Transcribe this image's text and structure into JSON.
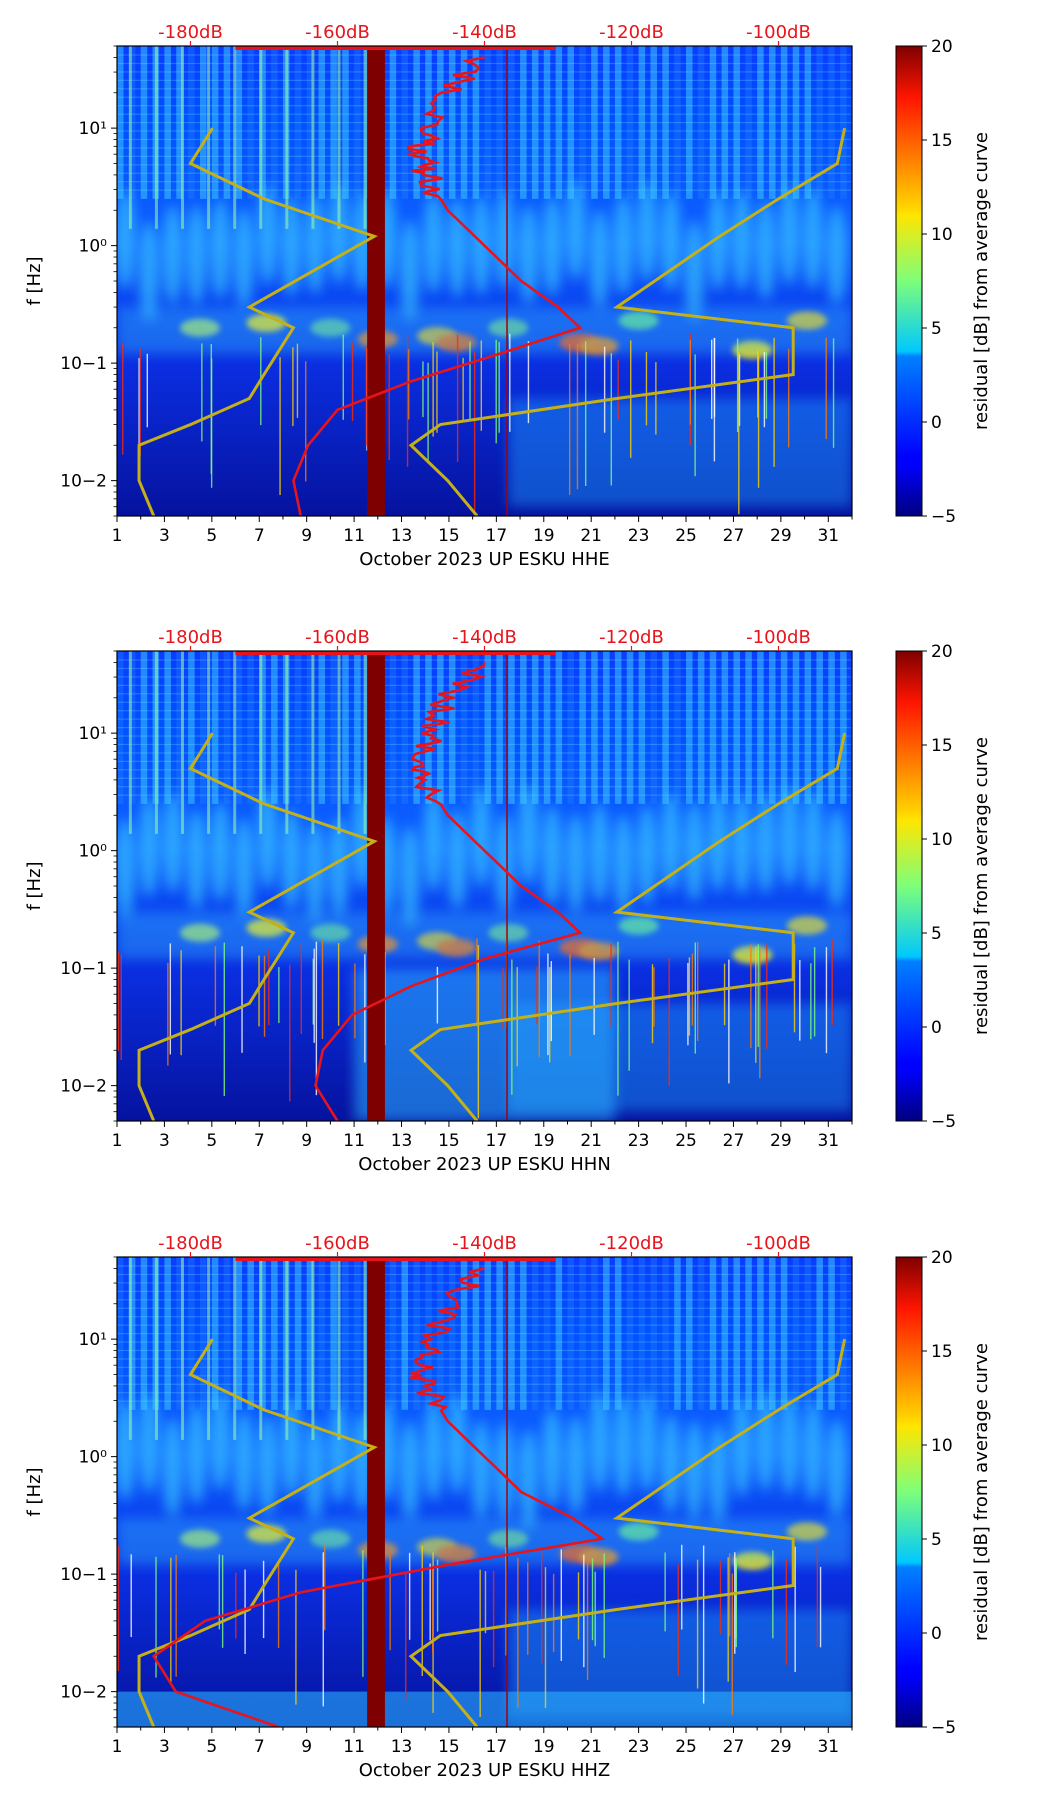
{
  "chart_data": [
    {
      "type": "heatmap",
      "title": "",
      "xlabel": "October 2023 UP ESKU  HHE",
      "ylabel": "f [Hz]",
      "x_ticks": [
        "1",
        "3",
        "5",
        "7",
        "9",
        "11",
        "13",
        "15",
        "17",
        "19",
        "21",
        "23",
        "25",
        "27",
        "29",
        "31"
      ],
      "xlim": [
        1,
        32
      ],
      "ylim": [
        0.005,
        50
      ],
      "y_scale": "log",
      "y_ticks": [
        "10−2",
        "10−1",
        "10⁰",
        "10¹"
      ],
      "top_axis_ticks": [
        "-180dB",
        "-160dB",
        "-140dB",
        "-120dB",
        "-100dB"
      ],
      "top_axis_range_db": [
        -190,
        -90
      ],
      "colorbar": {
        "label": "residual [dB] from average curve",
        "ticks": [
          "−5",
          "0",
          "5",
          "10",
          "15",
          "20"
        ],
        "range": [
          -5,
          20
        ]
      },
      "series": [
        {
          "name": "average PSD (red)",
          "color": "#e8141b",
          "db": [
            -165,
            -166,
            -164,
            -160,
            -150,
            -138,
            -127,
            -130,
            -135,
            -140,
            -145,
            -148,
            -149,
            -147,
            -145,
            -140
          ],
          "freq": [
            0.005,
            0.01,
            0.02,
            0.04,
            0.07,
            0.12,
            0.2,
            0.3,
            0.5,
            1,
            2,
            4,
            6,
            10,
            20,
            40
          ]
        },
        {
          "name": "noise model (olive)",
          "color": "#c4b018",
          "db_low": [
            -185,
            -187,
            -187,
            -180,
            -172,
            -170,
            -166,
            -172,
            -155,
            -170,
            -180,
            -177
          ],
          "db_high": [
            -141,
            -145,
            -150,
            -146,
            -122,
            -98,
            -98,
            -122,
            -108,
            -100,
            -92,
            -91
          ],
          "freq": [
            0.005,
            0.01,
            0.02,
            0.03,
            0.05,
            0.08,
            0.2,
            0.3,
            1.2,
            2.5,
            5,
            10
          ]
        }
      ],
      "dark_band_day": 12
    },
    {
      "type": "heatmap",
      "title": "",
      "xlabel": "October 2023 UP ESKU  HHN",
      "ylabel": "f [Hz]",
      "x_ticks": [
        "1",
        "3",
        "5",
        "7",
        "9",
        "11",
        "13",
        "15",
        "17",
        "19",
        "21",
        "23",
        "25",
        "27",
        "29",
        "31"
      ],
      "xlim": [
        1,
        32
      ],
      "ylim": [
        0.005,
        50
      ],
      "y_scale": "log",
      "y_ticks": [
        "10−2",
        "10−1",
        "10⁰",
        "10¹"
      ],
      "top_axis_ticks": [
        "-180dB",
        "-160dB",
        "-140dB",
        "-120dB",
        "-100dB"
      ],
      "top_axis_range_db": [
        -190,
        -90
      ],
      "colorbar": {
        "label": "residual [dB] from average curve",
        "ticks": [
          "−5",
          "0",
          "5",
          "10",
          "15",
          "20"
        ],
        "range": [
          -5,
          20
        ]
      },
      "series": [
        {
          "name": "average PSD (red)",
          "color": "#e8141b",
          "db": [
            -160,
            -163,
            -162,
            -158,
            -150,
            -140,
            -127,
            -130,
            -135,
            -140,
            -145,
            -148,
            -149,
            -147,
            -145,
            -140
          ],
          "freq": [
            0.005,
            0.01,
            0.02,
            0.04,
            0.07,
            0.12,
            0.2,
            0.3,
            0.5,
            1,
            2,
            4,
            6,
            10,
            20,
            40
          ]
        },
        {
          "name": "noise model (olive)",
          "color": "#c4b018",
          "db_low": [
            -185,
            -187,
            -187,
            -180,
            -172,
            -170,
            -166,
            -172,
            -155,
            -170,
            -180,
            -177
          ],
          "db_high": [
            -141,
            -145,
            -150,
            -146,
            -122,
            -98,
            -98,
            -122,
            -108,
            -100,
            -92,
            -91
          ],
          "freq": [
            0.005,
            0.01,
            0.02,
            0.03,
            0.05,
            0.08,
            0.2,
            0.3,
            1.2,
            2.5,
            5,
            10
          ]
        }
      ],
      "dark_band_day": 12
    },
    {
      "type": "heatmap",
      "title": "",
      "xlabel": "October 2023 UP ESKU  HHZ",
      "ylabel": "f [Hz]",
      "x_ticks": [
        "1",
        "3",
        "5",
        "7",
        "9",
        "11",
        "13",
        "15",
        "17",
        "19",
        "21",
        "23",
        "25",
        "27",
        "29",
        "31"
      ],
      "xlim": [
        1,
        32
      ],
      "ylim": [
        0.005,
        50
      ],
      "y_scale": "log",
      "y_ticks": [
        "10−2",
        "10−1",
        "10⁰",
        "10¹"
      ],
      "top_axis_ticks": [
        "-180dB",
        "-160dB",
        "-140dB",
        "-120dB",
        "-100dB"
      ],
      "top_axis_range_db": [
        -190,
        -90
      ],
      "colorbar": {
        "label": "residual [dB] from average curve",
        "ticks": [
          "−5",
          "0",
          "5",
          "10",
          "15",
          "20"
        ],
        "range": [
          -5,
          20
        ]
      },
      "series": [
        {
          "name": "average PSD (red)",
          "color": "#e8141b",
          "db": [
            -168,
            -182,
            -185,
            -178,
            -165,
            -145,
            -124,
            -128,
            -135,
            -140,
            -145,
            -148,
            -149,
            -147,
            -145,
            -140
          ],
          "freq": [
            0.005,
            0.01,
            0.02,
            0.04,
            0.07,
            0.12,
            0.2,
            0.3,
            0.5,
            1,
            2,
            4,
            6,
            10,
            20,
            40
          ]
        },
        {
          "name": "noise model (olive)",
          "color": "#c4b018",
          "db_low": [
            -185,
            -187,
            -187,
            -180,
            -172,
            -170,
            -166,
            -172,
            -155,
            -170,
            -180,
            -177
          ],
          "db_high": [
            -141,
            -145,
            -150,
            -146,
            -122,
            -98,
            -98,
            -122,
            -108,
            -100,
            -92,
            -91
          ],
          "freq": [
            0.005,
            0.01,
            0.02,
            0.03,
            0.05,
            0.08,
            0.2,
            0.3,
            1.2,
            2.5,
            5,
            10
          ]
        }
      ],
      "dark_band_day": 12
    }
  ]
}
